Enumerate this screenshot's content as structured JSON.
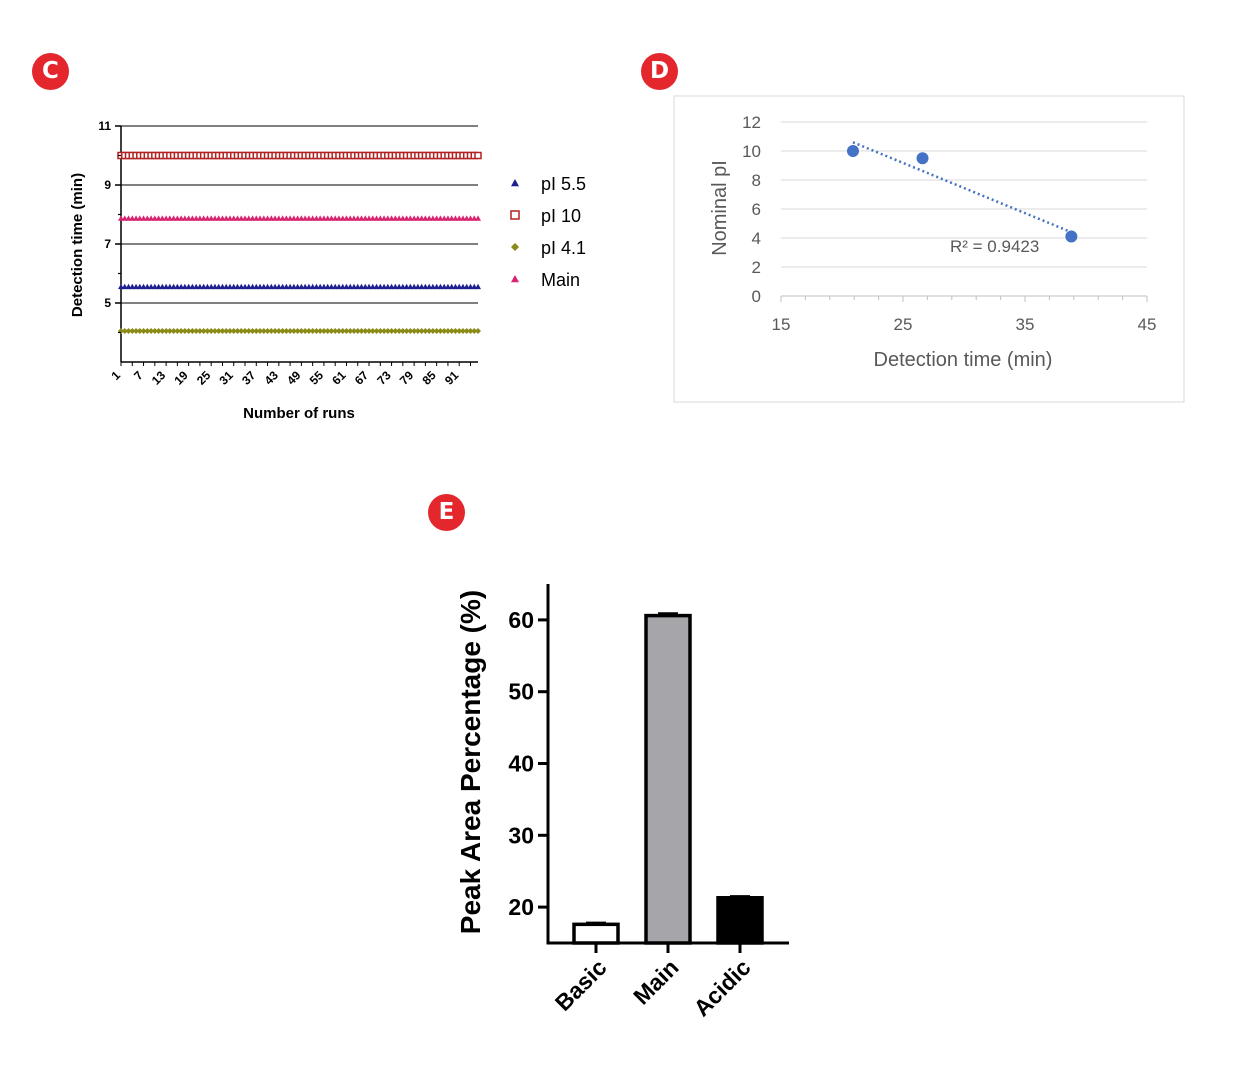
{
  "panels": {
    "c": "C",
    "d": "D",
    "e": "E"
  },
  "chart_data": [
    {
      "id": "C",
      "type": "scatter",
      "xlabel": "Number of runs",
      "ylabel": "Detection time (min)",
      "xlim": [
        1,
        96
      ],
      "ylim": [
        3,
        11
      ],
      "x_tick_labels": [
        "1",
        "7",
        "13",
        "19",
        "25",
        "31",
        "37",
        "43",
        "49",
        "55",
        "61",
        "67",
        "73",
        "79",
        "85",
        "91"
      ],
      "y_tick_labels": [
        "5",
        "7",
        "9",
        "11"
      ],
      "grid": "horizontal",
      "legend_position": "right",
      "n_runs": 96,
      "series": [
        {
          "name": "pI 5.5",
          "marker": "triangle",
          "color": "#1f1f8f",
          "value": 5.55
        },
        {
          "name": "pI 10",
          "marker": "square",
          "color": "#b22222",
          "value": 10.0
        },
        {
          "name": "pI 4.1",
          "marker": "diamond",
          "color": "#8a8a16",
          "value": 4.05
        },
        {
          "name": "Main",
          "marker": "triangle",
          "color": "#d6246e",
          "value": 7.87
        }
      ]
    },
    {
      "id": "D",
      "type": "scatter",
      "xlabel": "Detection time (min)",
      "ylabel": "Nominal pI",
      "xlim": [
        15,
        45
      ],
      "ylim": [
        0,
        12
      ],
      "x_tick_labels": [
        "15",
        "25",
        "35",
        "45"
      ],
      "y_tick_labels": [
        "0",
        "2",
        "4",
        "6",
        "8",
        "10",
        "12"
      ],
      "grid": "horizontal",
      "point_color": "#4472c4",
      "points": [
        {
          "x": 20.9,
          "y": 10.0
        },
        {
          "x": 26.6,
          "y": 9.5
        },
        {
          "x": 38.8,
          "y": 4.1
        }
      ],
      "trendline": {
        "style": "dotted",
        "from": {
          "x": 20.9,
          "y": 10.6
        },
        "to": {
          "x": 38.8,
          "y": 4.4
        }
      },
      "annotation": "R² = 0.9423"
    },
    {
      "id": "E",
      "type": "bar",
      "ylabel": "Peak Area Percentage (%)",
      "ylim": [
        15,
        65
      ],
      "y_tick_labels": [
        "20",
        "30",
        "40",
        "50",
        "60"
      ],
      "categories": [
        "Basic",
        "Main",
        "Acidic"
      ],
      "values": [
        17.6,
        60.6,
        21.3
      ],
      "errors": [
        0.2,
        0.3,
        0.2
      ],
      "fills": [
        "#ffffff",
        "#a6a6aa",
        "#000000"
      ]
    }
  ]
}
